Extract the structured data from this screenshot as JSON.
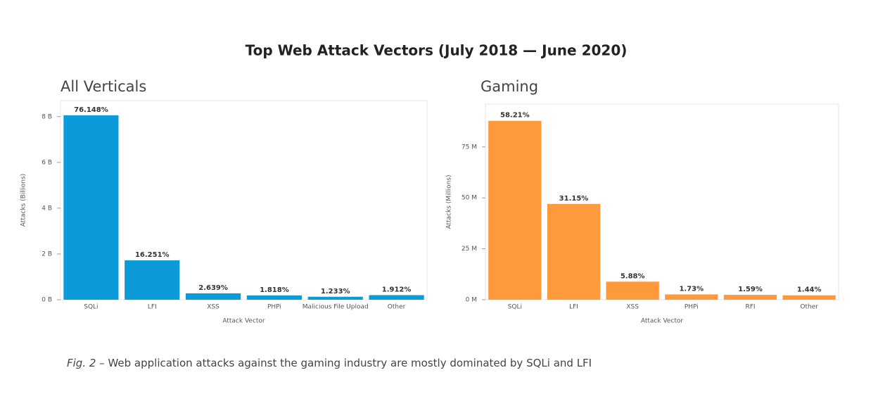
{
  "title": "Top Web Attack Vectors (July 2018 — June 2020)",
  "caption": {
    "prefix": "Fig. 2",
    "text": " – Web application attacks against the gaming industry are mostly dominated by SQLi and LFI"
  },
  "chart_data": [
    {
      "type": "bar",
      "title": "All Verticals",
      "x_label": "Attack Vector",
      "y_label": "Attacks (Billions)",
      "categories": [
        "SQLi",
        "LFI",
        "XSS",
        "PHPi",
        "Malicious File Upload",
        "Other"
      ],
      "values": [
        8.06,
        1.72,
        0.28,
        0.19,
        0.13,
        0.2
      ],
      "shares": [
        "76.148%",
        "16.251%",
        "2.639%",
        "1.818%",
        "1.233%",
        "1.912%"
      ],
      "color": "#0a9bd8",
      "ylim": [
        0,
        8.7
      ],
      "yticks": [
        {
          "value": 0,
          "label": "0 B"
        },
        {
          "value": 2,
          "label": "2 B"
        },
        {
          "value": 4,
          "label": "4 B"
        },
        {
          "value": 6,
          "label": "6 B"
        },
        {
          "value": 8,
          "label": "8 B"
        }
      ],
      "grid": false
    },
    {
      "type": "bar",
      "title": "Gaming",
      "x_label": "Attack Vector",
      "y_label": "Attacks (Millions)",
      "categories": [
        "SQLi",
        "LFI",
        "XSS",
        "PHPi",
        "RFI",
        "Other"
      ],
      "values": [
        87.8,
        47.0,
        8.87,
        2.61,
        2.4,
        2.17
      ],
      "shares": [
        "58.21%",
        "31.15%",
        "5.88%",
        "1.73%",
        "1.59%",
        "1.44%"
      ],
      "color": "#ff9a3c",
      "ylim": [
        0,
        96
      ],
      "yticks": [
        {
          "value": 0,
          "label": "0 M"
        },
        {
          "value": 25,
          "label": "25 M"
        },
        {
          "value": 50,
          "label": "50 M"
        },
        {
          "value": 75,
          "label": "75 M"
        }
      ],
      "grid": false
    }
  ]
}
